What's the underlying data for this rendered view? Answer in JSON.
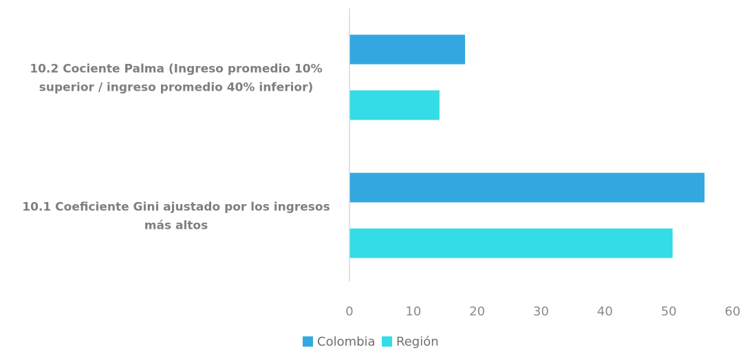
{
  "chart_data": {
    "type": "bar",
    "orientation": "horizontal",
    "categories": [
      [
        "10.2 Cociente Palma (Ingreso promedio 10%",
        "superior / ingreso promedio 40% inferior)"
      ],
      [
        "10.1 Coeficiente Gini ajustado por los ingresos",
        "más altos"
      ]
    ],
    "series": [
      {
        "name": "Colombia",
        "color": "#33a8e0",
        "values": [
          18.1,
          55.6
        ]
      },
      {
        "name": "Región",
        "color": "#33dce6",
        "values": [
          14.1,
          50.6
        ]
      }
    ],
    "xlim": [
      0,
      60
    ],
    "xticks": [
      0,
      10,
      20,
      30,
      40,
      50,
      60
    ],
    "legend": "bottom-center",
    "grid": false,
    "axis_color": "#d9d9d9"
  }
}
